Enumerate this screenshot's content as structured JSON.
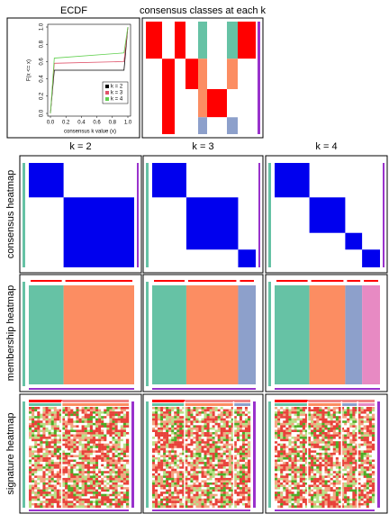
{
  "chart_data": {
    "type": "line",
    "title": "ECDF",
    "xlabel": "consensus k value (x)",
    "ylabel": "F(x <= x)",
    "x": [
      0,
      0.05,
      0.95,
      1.0
    ],
    "series": [
      {
        "name": "k = 2",
        "color": "#000000",
        "values": [
          0,
          0.5,
          0.5,
          1
        ]
      },
      {
        "name": "k = 3",
        "color": "#df536b",
        "values": [
          0,
          0.58,
          0.6,
          1
        ]
      },
      {
        "name": "k = 4",
        "color": "#61d04f",
        "values": [
          0,
          0.64,
          0.7,
          1
        ]
      }
    ],
    "xlim": [
      0,
      1
    ],
    "ylim": [
      0,
      1
    ],
    "xticks": [
      {
        "value": 0,
        "label": "0.0"
      },
      0.2,
      0.4,
      0.6,
      0.8,
      {
        "value": 1,
        "label": "1.0"
      }
    ],
    "yticks": [
      {
        "value": 0,
        "label": "0.0"
      },
      0.2,
      0.4,
      0.6,
      0.8,
      {
        "value": 1,
        "label": "1.0"
      }
    ]
  },
  "classes_title": "consensus classes at each k",
  "columns": [
    "k = 2",
    "k = 3",
    "k = 4"
  ],
  "row_labels": [
    "consensus heatmap",
    "membership heatmap",
    "signature heatmap"
  ]
}
